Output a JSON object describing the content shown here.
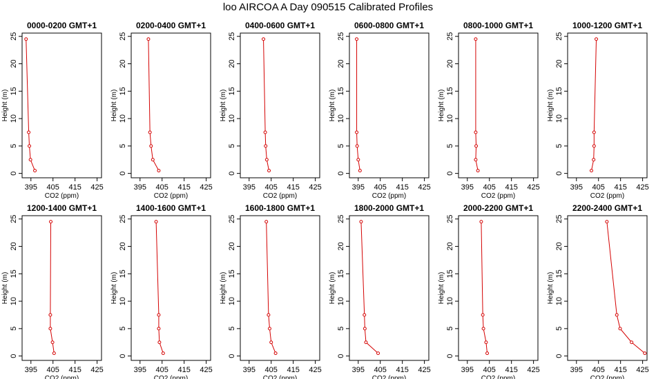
{
  "title": "loo AIRCOA A  Day 090515  Calibrated Profiles",
  "colors": {
    "series": "#d40000",
    "axes": "#000000",
    "background": "#ffffff"
  },
  "chart_data": {
    "type": "line",
    "layout": "small-multiples 2x6",
    "xlabel": "CO2 (ppm)",
    "ylabel": "Height (m)",
    "xticks": [
      395,
      405,
      415,
      425
    ],
    "yticks": [
      0,
      5,
      10,
      15,
      20,
      25
    ],
    "xlim": [
      391,
      427
    ],
    "ylim": [
      -0.8,
      25.6
    ],
    "grid": false,
    "markers": "open circles",
    "heights": [
      24.5,
      7.5,
      5.0,
      2.5,
      0.5
    ],
    "panels": [
      {
        "title": "0000-0200 GMT+1",
        "co2": [
          392.8,
          394.0,
          394.3,
          394.8,
          396.8
        ]
      },
      {
        "title": "0200-0400 GMT+1",
        "co2": [
          398.8,
          399.5,
          400.0,
          400.8,
          403.5
        ]
      },
      {
        "title": "0400-0600 GMT+1",
        "co2": [
          401.5,
          402.3,
          402.5,
          403.0,
          404.0
        ]
      },
      {
        "title": "0600-0800 GMT+1",
        "co2": [
          394.3,
          394.3,
          394.5,
          395.0,
          395.8
        ]
      },
      {
        "title": "0800-1000 GMT+1",
        "co2": [
          398.8,
          398.8,
          399.0,
          398.8,
          399.8
        ]
      },
      {
        "title": "1000-1200 GMT+1",
        "co2": [
          404.0,
          403.0,
          403.0,
          402.8,
          401.8
        ]
      },
      {
        "title": "1200-1400 GMT+1",
        "co2": [
          404.0,
          403.8,
          403.8,
          404.8,
          405.5
        ]
      },
      {
        "title": "1400-1600 GMT+1",
        "co2": [
          402.3,
          403.5,
          403.5,
          403.8,
          405.5
        ]
      },
      {
        "title": "1600-1800 GMT+1",
        "co2": [
          402.8,
          403.8,
          404.3,
          405.0,
          407.0
        ]
      },
      {
        "title": "1800-2000 GMT+1",
        "co2": [
          396.3,
          397.8,
          398.0,
          398.5,
          404.0
        ]
      },
      {
        "title": "2000-2200 GMT+1",
        "co2": [
          401.3,
          402.0,
          402.3,
          403.5,
          404.0
        ]
      },
      {
        "title": "2200-2400 GMT+1",
        "co2": [
          408.8,
          413.3,
          414.8,
          420.0,
          426.0
        ]
      }
    ]
  }
}
